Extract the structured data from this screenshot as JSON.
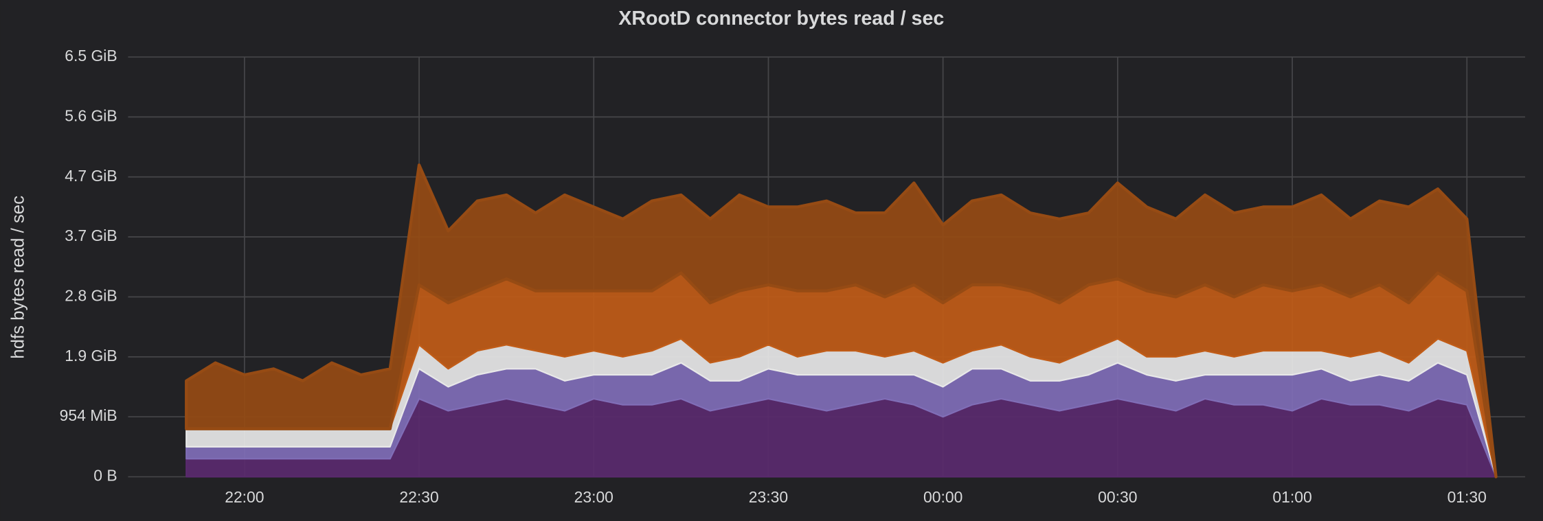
{
  "chart_data": {
    "type": "line",
    "title": "XRootD connector bytes read / sec",
    "y_axis_label": "hdfs bytes read / sec",
    "stacked": true,
    "grid": true,
    "xlim": [
      "21:40",
      "01:40"
    ],
    "xticks": [
      "22:00",
      "22:30",
      "23:00",
      "23:30",
      "00:00",
      "00:30",
      "01:00",
      "01:30"
    ],
    "ylim": [
      0,
      7000000000.0
    ],
    "yticks": [
      {
        "value": 0,
        "label": "0 B"
      },
      {
        "value": 1000000000.0,
        "label": "954 MiB"
      },
      {
        "value": 2000000000.0,
        "label": "1.9 GiB"
      },
      {
        "value": 3000000000.0,
        "label": "2.8 GiB"
      },
      {
        "value": 4000000000.0,
        "label": "3.7 GiB"
      },
      {
        "value": 5000000000.0,
        "label": "4.7 GiB"
      },
      {
        "value": 6000000000.0,
        "label": "5.6 GiB"
      },
      {
        "value": 7000000000.0,
        "label": "6.5 GiB"
      }
    ],
    "x": [
      "21:50",
      "21:55",
      "22:00",
      "22:05",
      "22:10",
      "22:15",
      "22:20",
      "22:25",
      "22:30",
      "22:35",
      "22:40",
      "22:45",
      "22:50",
      "22:55",
      "23:00",
      "23:05",
      "23:10",
      "23:15",
      "23:20",
      "23:25",
      "23:30",
      "23:35",
      "23:40",
      "23:45",
      "23:50",
      "23:55",
      "00:00",
      "00:05",
      "00:10",
      "00:15",
      "00:20",
      "00:25",
      "00:30",
      "00:35",
      "00:40",
      "00:45",
      "00:50",
      "00:55",
      "01:00",
      "01:05",
      "01:10",
      "01:15",
      "01:20",
      "01:25",
      "01:30",
      "01:35"
    ],
    "series": [
      {
        "color": "#5a2a6e",
        "values": [
          300000000.0,
          300000000.0,
          300000000.0,
          300000000.0,
          300000000.0,
          300000000.0,
          300000000.0,
          300000000.0,
          1300000000.0,
          1100000000.0,
          1200000000.0,
          1300000000.0,
          1200000000.0,
          1100000000.0,
          1300000000.0,
          1200000000.0,
          1200000000.0,
          1300000000.0,
          1100000000.0,
          1200000000.0,
          1300000000.0,
          1200000000.0,
          1100000000.0,
          1200000000.0,
          1300000000.0,
          1200000000.0,
          1000000000.0,
          1200000000.0,
          1300000000.0,
          1200000000.0,
          1100000000.0,
          1200000000.0,
          1300000000.0,
          1200000000.0,
          1100000000.0,
          1300000000.0,
          1200000000.0,
          1200000000.0,
          1100000000.0,
          1300000000.0,
          1200000000.0,
          1200000000.0,
          1100000000.0,
          1300000000.0,
          1200000000.0,
          0
        ]
      },
      {
        "color": "#806eb7",
        "values": [
          200000000.0,
          200000000.0,
          200000000.0,
          200000000.0,
          200000000.0,
          200000000.0,
          200000000.0,
          200000000.0,
          500000000.0,
          400000000.0,
          500000000.0,
          500000000.0,
          600000000.0,
          500000000.0,
          400000000.0,
          500000000.0,
          500000000.0,
          600000000.0,
          500000000.0,
          400000000.0,
          500000000.0,
          500000000.0,
          600000000.0,
          500000000.0,
          400000000.0,
          500000000.0,
          500000000.0,
          600000000.0,
          500000000.0,
          400000000.0,
          500000000.0,
          500000000.0,
          600000000.0,
          500000000.0,
          500000000.0,
          400000000.0,
          500000000.0,
          500000000.0,
          600000000.0,
          500000000.0,
          400000000.0,
          500000000.0,
          500000000.0,
          600000000.0,
          500000000.0,
          0
        ]
      },
      {
        "color": "#e8e8e8",
        "values": [
          300000000.0,
          300000000.0,
          300000000.0,
          300000000.0,
          300000000.0,
          300000000.0,
          300000000.0,
          300000000.0,
          400000000.0,
          300000000.0,
          400000000.0,
          400000000.0,
          300000000.0,
          400000000.0,
          400000000.0,
          300000000.0,
          400000000.0,
          400000000.0,
          300000000.0,
          400000000.0,
          400000000.0,
          300000000.0,
          400000000.0,
          400000000.0,
          300000000.0,
          400000000.0,
          400000000.0,
          300000000.0,
          400000000.0,
          400000000.0,
          300000000.0,
          400000000.0,
          400000000.0,
          300000000.0,
          400000000.0,
          400000000.0,
          300000000.0,
          400000000.0,
          400000000.0,
          300000000.0,
          400000000.0,
          400000000.0,
          300000000.0,
          400000000.0,
          400000000.0,
          0
        ]
      },
      {
        "color": "#c15c17",
        "values": [
          0,
          0,
          0,
          0,
          0,
          0,
          0,
          0,
          1000000000.0,
          1100000000.0,
          1000000000.0,
          1100000000.0,
          1000000000.0,
          1100000000.0,
          1000000000.0,
          1100000000.0,
          1000000000.0,
          1100000000.0,
          1000000000.0,
          1100000000.0,
          1000000000.0,
          1100000000.0,
          1000000000.0,
          1100000000.0,
          1000000000.0,
          1100000000.0,
          1000000000.0,
          1100000000.0,
          1000000000.0,
          1100000000.0,
          1000000000.0,
          1100000000.0,
          1000000000.0,
          1100000000.0,
          1000000000.0,
          1100000000.0,
          1000000000.0,
          1100000000.0,
          1000000000.0,
          1100000000.0,
          1000000000.0,
          1100000000.0,
          1000000000.0,
          1100000000.0,
          1000000000.0,
          0
        ]
      },
      {
        "color": "#964b14",
        "values": [
          800000000.0,
          1100000000.0,
          900000000.0,
          1000000000.0,
          800000000.0,
          1100000000.0,
          900000000.0,
          1000000000.0,
          2000000000.0,
          1200000000.0,
          1500000000.0,
          1400000000.0,
          1300000000.0,
          1600000000.0,
          1400000000.0,
          1200000000.0,
          1500000000.0,
          1300000000.0,
          1400000000.0,
          1600000000.0,
          1300000000.0,
          1400000000.0,
          1500000000.0,
          1200000000.0,
          1400000000.0,
          1700000000.0,
          1300000000.0,
          1400000000.0,
          1500000000.0,
          1300000000.0,
          1400000000.0,
          1200000000.0,
          1600000000.0,
          1400000000.0,
          1300000000.0,
          1500000000.0,
          1400000000.0,
          1300000000.0,
          1400000000.0,
          1500000000.0,
          1300000000.0,
          1400000000.0,
          1600000000.0,
          1400000000.0,
          1200000000.0,
          0
        ]
      }
    ]
  }
}
